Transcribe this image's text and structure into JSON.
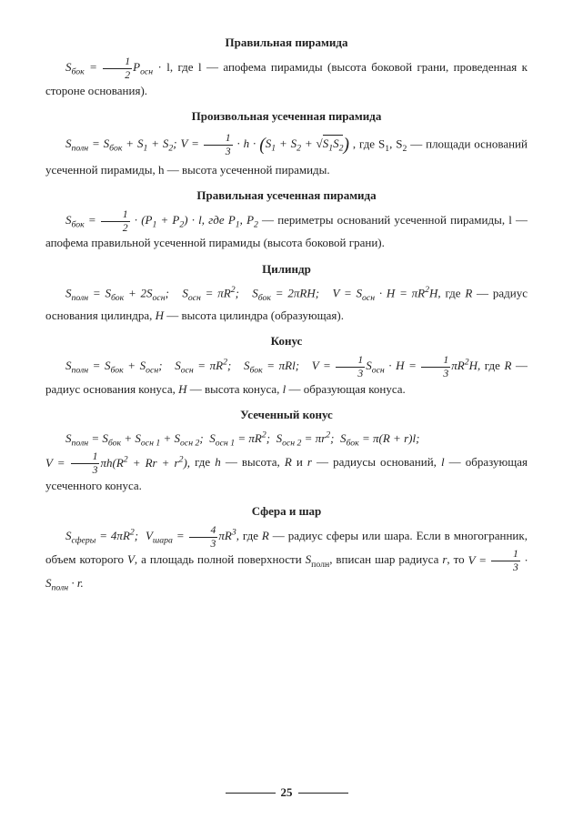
{
  "page_number": "25",
  "sections": {
    "s1": {
      "title": "Правильная пирамида",
      "para1_a": "S",
      "para1_b": "бок",
      "para1_c": " = ",
      "para1_frac_num": "1",
      "para1_frac_den": "2",
      "para1_d": "P",
      "para1_e": "осн",
      "para1_f": " · l, где l — апофема пирамиды (высота боковой грани, проведенная к стороне основания)."
    },
    "s2": {
      "title": "Произвольная усеченная пирамида",
      "l1_a": "S",
      "l1_b": "полн",
      "l1_c": " = S",
      "l1_d": "бок",
      "l1_e": " + S",
      "l1_f": "1",
      "l1_g": " + S",
      "l1_h": "2",
      "l1_i": ";  V = ",
      "l1_frac_num": "1",
      "l1_frac_den": "3",
      "l1_j": " · h · ",
      "l1_k": "S",
      "l1_l": "1",
      "l1_m": " + S",
      "l1_n": "2",
      "l1_o": " + √",
      "l1_p": "S",
      "l1_q": "1",
      "l1_r": "S",
      "l1_s": "2",
      "l1_t": ", где S",
      "l1_u": "1",
      "l1_v": ", S",
      "l1_w": "2",
      "l1_x": " — площади оснований усеченной пирамиды, h — высота усеченной пирамиды."
    },
    "s3": {
      "title": "Правильная усеченная пирамида",
      "a": "S",
      "b": "бок",
      "c": " = ",
      "fn": "1",
      "fd": "2",
      "d": " · (P",
      "e": "1",
      "f": " + P",
      "g": "2",
      "h": ") · l, где P",
      "i": "1",
      "j": ", P",
      "k": "2",
      "l": " — периметры оснований усеченной пирамиды, l — апофема правильной усеченной пирамиды (высота боковой грани)."
    },
    "s4": {
      "title": "Цилиндр",
      "line": "S_полн = S_бок + 2S_осн;   S_осн = πR²;   S_бок = 2πRH;   V = S_осн · H = πR²H, где R — радиус основания цилиндра, H — высота цилиндра (образующая)."
    },
    "s5": {
      "title": "Конус",
      "a": "S_полн = S_бок + S_осн;   S_осн = πR²;   S_бок = πRl;   V = ",
      "fn": "1",
      "fd": "3",
      "b": "S_осн · H = ",
      "fn2": "1",
      "fd2": "3",
      "c": "πR²H, где R — радиус основания конуса, H — высота конуса, l — образующая конуса."
    },
    "s6": {
      "title": "Усеченный конус",
      "a": "S_полн = S_бок + S_осн 1 + S_осн 2;   S_осн 1 = πR²;   S_осн 2 = πr²;   S_бок = π(R + r)l;",
      "b": "V = ",
      "fn": "1",
      "fd": "3",
      "c": "πh(R² + Rr + r²), где h — высота, R и r — радиусы оснований, l — образующая усеченного конуса."
    },
    "s7": {
      "title": "Сфера и шар",
      "a": "S_сферы = 4πR²;  V_шара = ",
      "fn": "4",
      "fd": "3",
      "b": "πR³, где R — радиус сферы или шара. Если в многогранник, объем которого V, а площадь полной поверхности S_полн, вписан шар радиуса r, то V = ",
      "fn2": "1",
      "fd2": "3",
      "c": " · S_полн · r."
    }
  }
}
